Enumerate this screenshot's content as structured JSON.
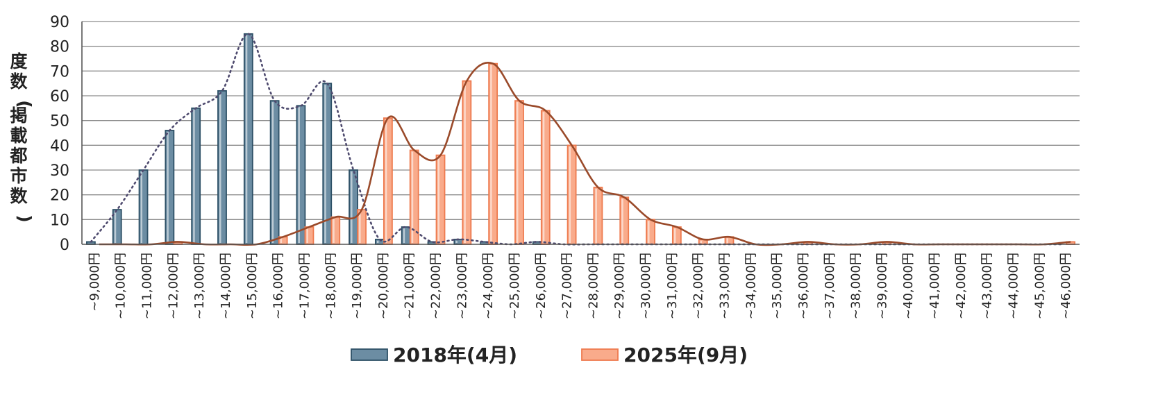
{
  "chart_data": {
    "type": "bar",
    "categories": [
      "~9,000円",
      "~10,000円",
      "~11,000円",
      "~12,000円",
      "~13,000円",
      "~14,000円",
      "~15,000円",
      "~16,000円",
      "~17,000円",
      "~18,000円",
      "~19,000円",
      "~20,000円",
      "~21,000円",
      "~22,000円",
      "~23,000円",
      "~24,000円",
      "~25,000円",
      "~26,000円",
      "~27,000円",
      "~28,000円",
      "~29,000円",
      "~30,000円",
      "~31,000円",
      "~32,000円",
      "~33,000円",
      "~34,000円",
      "~35,000円",
      "~36,000円",
      "~37,000円",
      "~38,000円",
      "~39,000円",
      "~40,000円",
      "~41,000円",
      "~42,000円",
      "~43,000円",
      "~44,000円",
      "~45,000円",
      "~46,000円"
    ],
    "series": [
      {
        "name": "2018年(4月)",
        "color": "#6c8da3",
        "edge_color": "#2d5066",
        "trend_color": "#4e4a6e",
        "trend_style": "dotted",
        "values": [
          1,
          14,
          30,
          46,
          55,
          62,
          85,
          58,
          56,
          65,
          30,
          2,
          7,
          1,
          2,
          1,
          0,
          1,
          0,
          0,
          0,
          0,
          0,
          0,
          0,
          0,
          0,
          0,
          0,
          0,
          0,
          0,
          0,
          0,
          0,
          0,
          0,
          0
        ]
      },
      {
        "name": "2025年(9月)",
        "color": "#f9ab8b",
        "edge_color": "#ee7a4e",
        "trend_color": "#9a4a2a",
        "trend_style": "solid",
        "values": [
          0,
          0,
          0,
          1,
          0,
          0,
          0,
          3,
          7,
          11,
          14,
          51,
          38,
          36,
          66,
          73,
          58,
          54,
          40,
          23,
          19,
          10,
          7,
          2,
          3,
          0,
          0,
          1,
          0,
          0,
          1,
          0,
          0,
          0,
          0,
          0,
          0,
          1
        ]
      }
    ],
    "title": "",
    "xlabel": "",
    "ylabel": "度数(掲載都市数)",
    "ylim": [
      0,
      90
    ],
    "yticks": [
      0,
      10,
      20,
      30,
      40,
      50,
      60,
      70,
      80,
      90
    ],
    "grid": true,
    "legend_position": "bottom"
  }
}
